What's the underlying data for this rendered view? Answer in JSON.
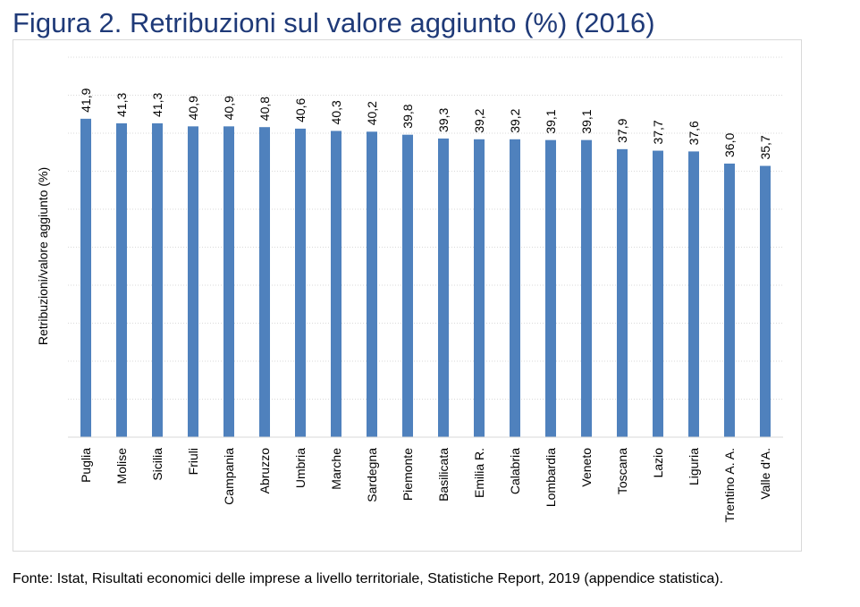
{
  "title": "Figura 2. Retribuzioni sul valore aggiunto (%) (2016)",
  "source": "Fonte: Istat, Risultati economici delle imprese a livello territoriale, Statistiche Report, 2019 (appendice statistica).",
  "colors": {
    "title": "#1F3A78",
    "bar": "#4F81BD",
    "grid": "#d9d9d9",
    "frame": "#d9d9d9"
  },
  "chart_data": {
    "type": "bar",
    "title": "",
    "xlabel": "",
    "ylabel": "Retribuzioni/valore aggiunto (%)",
    "ylim": [
      0,
      50
    ],
    "grid": "horizontal dotted",
    "legend": "none",
    "categories": [
      "Puglia",
      "Molise",
      "Sicilia",
      "Friuli",
      "Campania",
      "Abruzzo",
      "Umbria",
      "Marche",
      "Sardegna",
      "Piemonte",
      "Basilicata",
      "Emilia R.",
      "Calabria",
      "Lombardia",
      "Veneto",
      "Toscana",
      "Lazio",
      "Liguria",
      "Trentino A. A.",
      "Valle d'A."
    ],
    "values": [
      41.9,
      41.3,
      41.3,
      40.9,
      40.9,
      40.8,
      40.6,
      40.3,
      40.2,
      39.8,
      39.3,
      39.2,
      39.2,
      39.1,
      39.1,
      37.9,
      37.7,
      37.6,
      36.0,
      35.7
    ],
    "value_labels": [
      "41,9",
      "41,3",
      "41,3",
      "40,9",
      "40,9",
      "40,8",
      "40,6",
      "40,3",
      "40,2",
      "39,8",
      "39,3",
      "39,2",
      "39,2",
      "39,1",
      "39,1",
      "37,9",
      "37,7",
      "37,6",
      "36,0",
      "35,7"
    ]
  }
}
